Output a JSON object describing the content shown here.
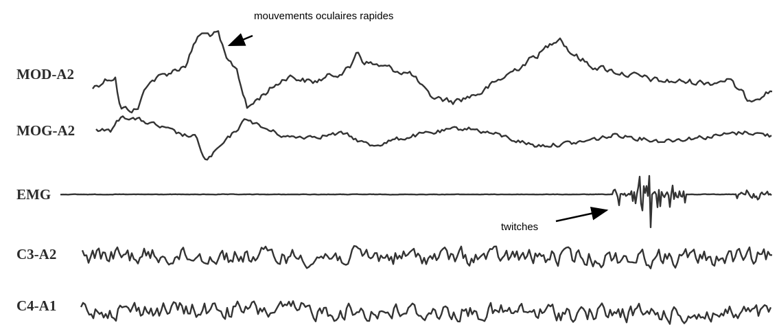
{
  "channels": [
    "MOD-A2",
    "MOG-A2",
    "EMG",
    "C3-A2",
    "C4-A1"
  ],
  "annotations": [
    "mouvements oculaires rapides",
    "twitches"
  ]
}
